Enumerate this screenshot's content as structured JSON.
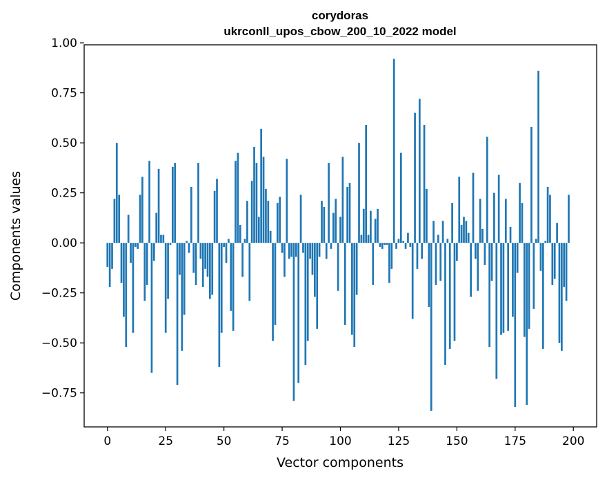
{
  "chart_data": {
    "type": "bar",
    "title": "corydoras",
    "subtitle": "ukrconll_upos_cbow_200_10_2022 model",
    "xlabel": "Vector components",
    "ylabel": "Components values",
    "xlim": [
      -10,
      210
    ],
    "ylim": [
      -0.92,
      0.99
    ],
    "xticks": [
      0,
      25,
      50,
      75,
      100,
      125,
      150,
      175,
      200
    ],
    "yticks": [
      -0.75,
      -0.5,
      -0.25,
      0.0,
      0.25,
      0.5,
      0.75,
      1.0
    ],
    "xtick_labels": [
      "0",
      "25",
      "50",
      "75",
      "100",
      "125",
      "150",
      "175",
      "200"
    ],
    "ytick_labels": [
      "−0.75",
      "−0.50",
      "−0.25",
      "0.00",
      "0.25",
      "0.50",
      "0.75",
      "1.00"
    ],
    "bar_color": "#1f77b4",
    "values": [
      -0.12,
      -0.22,
      -0.13,
      0.22,
      0.5,
      0.24,
      -0.2,
      -0.37,
      -0.52,
      0.14,
      -0.1,
      -0.45,
      -0.02,
      -0.03,
      0.24,
      0.33,
      -0.29,
      -0.21,
      0.41,
      -0.65,
      -0.09,
      0.15,
      0.37,
      0.04,
      0.04,
      -0.45,
      -0.28,
      -0.01,
      0.38,
      0.4,
      -0.71,
      -0.16,
      -0.54,
      -0.36,
      0.01,
      -0.05,
      0.28,
      -0.15,
      -0.21,
      0.4,
      -0.08,
      -0.22,
      -0.13,
      -0.17,
      -0.28,
      -0.26,
      0.26,
      0.32,
      -0.62,
      -0.45,
      -0.02,
      -0.1,
      0.02,
      -0.34,
      -0.44,
      0.41,
      0.45,
      0.09,
      -0.17,
      0.02,
      0.21,
      -0.29,
      0.31,
      0.48,
      0.4,
      0.13,
      0.57,
      0.43,
      0.27,
      0.21,
      0.06,
      -0.49,
      -0.41,
      0.2,
      0.23,
      -0.05,
      -0.17,
      0.42,
      -0.08,
      -0.07,
      -0.79,
      -0.07,
      -0.7,
      0.24,
      -0.05,
      -0.61,
      -0.49,
      -0.08,
      -0.16,
      -0.27,
      -0.43,
      -0.07,
      0.21,
      0.18,
      -0.08,
      0.4,
      -0.03,
      0.15,
      0.22,
      -0.24,
      0.13,
      0.43,
      -0.41,
      0.28,
      0.3,
      -0.46,
      -0.52,
      -0.26,
      0.5,
      0.04,
      0.17,
      0.59,
      0.04,
      0.16,
      -0.21,
      0.12,
      0.17,
      -0.02,
      -0.03,
      -0.01,
      -0.01,
      -0.2,
      -0.13,
      0.92,
      -0.03,
      0.02,
      0.45,
      0.01,
      -0.03,
      0.05,
      -0.02,
      -0.38,
      0.65,
      -0.13,
      0.72,
      -0.08,
      0.59,
      0.27,
      -0.32,
      -0.84,
      0.11,
      -0.21,
      0.04,
      -0.19,
      0.11,
      -0.61,
      0.02,
      -0.53,
      0.2,
      -0.49,
      -0.09,
      0.33,
      0.09,
      0.13,
      0.11,
      0.05,
      -0.27,
      0.35,
      -0.08,
      -0.24,
      0.22,
      0.07,
      -0.11,
      0.53,
      -0.52,
      -0.19,
      0.25,
      -0.68,
      0.34,
      -0.46,
      -0.45,
      0.22,
      -0.44,
      0.08,
      -0.37,
      -0.82,
      -0.15,
      0.3,
      0.2,
      -0.47,
      -0.81,
      -0.43,
      0.58,
      -0.33,
      0.02,
      0.86,
      -0.14,
      -0.53,
      0.01,
      0.28,
      0.24,
      -0.21,
      -0.18,
      0.1,
      -0.5,
      -0.54,
      -0.22,
      -0.29,
      0.24
    ]
  }
}
